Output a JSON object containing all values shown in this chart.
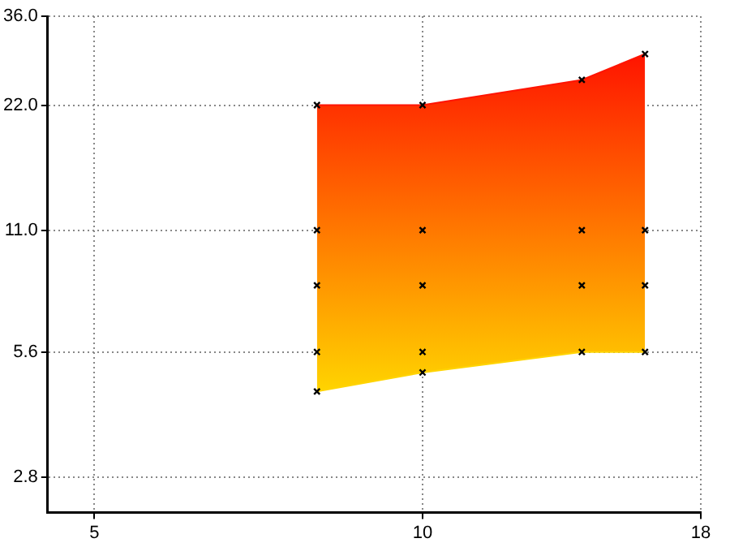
{
  "chart_data": {
    "type": "area",
    "x": [
      8,
      10,
      14,
      16
    ],
    "log": "xy",
    "xlim": [
      4.53,
      18
    ],
    "ylim": [
      2.3,
      36
    ],
    "xticks": [
      5,
      10,
      18
    ],
    "yticks": [
      {
        "value": 2.8,
        "label": "2.8"
      },
      {
        "value": 5.6,
        "label": "5.6"
      },
      {
        "value": 11,
        "label": "11.0"
      },
      {
        "value": 22,
        "label": "22.0"
      },
      {
        "value": 36,
        "label": "36.0"
      }
    ],
    "grid": true,
    "legend": false,
    "marker": "cross",
    "series": [
      {
        "color": "#ff1400",
        "values": [
          22,
          22,
          25.3,
          29.2
        ]
      },
      {
        "type": "line",
        "color": "#ffd400",
        "values": [
          4.5,
          5.0,
          5.6,
          5.6
        ]
      },
      {
        "type": "scatter",
        "color": "#000000",
        "x": [
          8,
          10,
          14,
          16,
          8,
          10,
          14,
          16,
          8,
          10
        ],
        "values": [
          11,
          11,
          11,
          11,
          8.1,
          8.1,
          8.1,
          8.1,
          5.6,
          5.6
        ]
      }
    ]
  }
}
